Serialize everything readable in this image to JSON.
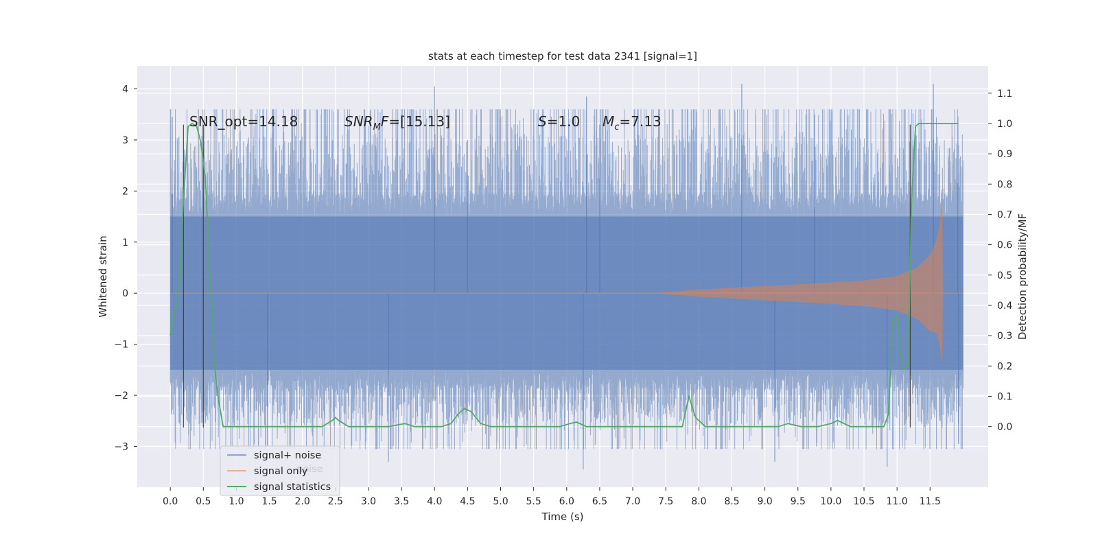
{
  "chart_data": {
    "type": "line",
    "title": "stats at each timestep for test data 2341 [signal=1]",
    "xlabel": "Time (s)",
    "ylabel": "Whitened strain",
    "y2label": "Detection probability/MF",
    "xlim": [
      -0.5,
      12.38
    ],
    "ylim": [
      -3.8,
      4.45
    ],
    "y2lim": [
      -0.2,
      1.19
    ],
    "grid": true,
    "x_ticks": [
      0.0,
      0.5,
      1.0,
      1.5,
      2.0,
      2.5,
      3.0,
      3.5,
      4.0,
      4.5,
      5.0,
      5.5,
      6.0,
      6.5,
      7.0,
      7.5,
      8.0,
      8.5,
      9.0,
      9.5,
      10.0,
      10.5,
      11.0,
      11.5
    ],
    "x_tick_labels": [
      "0.0",
      "0.5",
      "1.0",
      "1.5",
      "2.0",
      "2.5",
      "3.0",
      "3.5",
      "4.0",
      "4.5",
      "5.0",
      "5.5",
      "6.0",
      "6.5",
      "7.0",
      "7.5",
      "8.0",
      "8.5",
      "9.0",
      "9.5",
      "10.0",
      "10.5",
      "11.0",
      "11.5"
    ],
    "y_ticks": [
      -3,
      -2,
      -1,
      0,
      1,
      2,
      3,
      4
    ],
    "y_tick_labels": [
      "−3",
      "−2",
      "−1",
      "0",
      "1",
      "2",
      "3",
      "4"
    ],
    "y2_ticks": [
      0.0,
      0.1,
      0.2,
      0.3,
      0.4,
      0.5,
      0.6,
      0.7,
      0.8,
      0.9,
      1.0,
      1.1
    ],
    "y2_tick_labels": [
      "0.0",
      "0.1",
      "0.2",
      "0.3",
      "0.4",
      "0.5",
      "0.6",
      "0.7",
      "0.8",
      "0.9",
      "1.0",
      "1.1"
    ],
    "legend": {
      "position": "lower-left",
      "entries": [
        "signal+ noise",
        "signal only",
        "signal statistics"
      ],
      "ghost_text": "noise"
    },
    "annotations": [
      {
        "text": "SNR_opt=14.18",
        "x": 0.2,
        "y": 3.4
      },
      {
        "text": "SNR_MF=[15.13]",
        "x": 2.6,
        "y": 3.4
      },
      {
        "text": "S=1.0",
        "x": 5.6,
        "y": 3.4
      },
      {
        "text": "M_c=7.13",
        "x": 6.6,
        "y": 3.4
      }
    ],
    "vertical_lines": [
      0.2,
      0.5,
      11.2
    ],
    "vertical_line_range": [
      -2.63,
      3.3
    ],
    "series": [
      {
        "name": "signal+ noise",
        "axis": "left",
        "color": "#4c72b0",
        "kind": "noise",
        "x_range": [
          0.0,
          12.0
        ],
        "core_amplitude": 1.5,
        "typical_peak_range": [
          1.9,
          3.5
        ],
        "max": 4.1,
        "min": -3.45
      },
      {
        "name": "signal only",
        "axis": "left",
        "color": "#dd8452",
        "kind": "chirp",
        "x_range": [
          0.0,
          12.0
        ],
        "envelope": {
          "x": [
            7.3,
            8.0,
            9.0,
            10.0,
            10.5,
            11.0,
            11.3,
            11.5,
            11.6,
            11.65,
            11.68,
            11.7
          ],
          "y": [
            0.0,
            0.07,
            0.14,
            0.21,
            0.25,
            0.34,
            0.5,
            0.75,
            1.05,
            1.4,
            1.8,
            0.0
          ]
        },
        "min": -1.35
      },
      {
        "name": "signal statistics",
        "axis": "right",
        "color": "#55a868",
        "kind": "line",
        "x": [
          0.0,
          0.06,
          0.13,
          0.2,
          0.27,
          0.33,
          0.4,
          0.46,
          0.53,
          0.6,
          0.66,
          0.72,
          0.8,
          1.0,
          1.5,
          2.0,
          2.3,
          2.45,
          2.5,
          2.55,
          2.7,
          3.0,
          3.3,
          3.55,
          3.7,
          3.9,
          4.1,
          4.25,
          4.35,
          4.45,
          4.55,
          4.7,
          4.85,
          5.0,
          5.5,
          5.9,
          6.05,
          6.15,
          6.3,
          6.6,
          7.0,
          7.5,
          7.75,
          7.85,
          7.95,
          8.1,
          8.5,
          9.0,
          9.2,
          9.35,
          9.55,
          9.8,
          10.0,
          10.1,
          10.3,
          10.5,
          10.7,
          10.8,
          10.87,
          10.93,
          11.0,
          11.05,
          11.1,
          11.17,
          11.22,
          11.28,
          11.33,
          11.4,
          11.6,
          11.8,
          11.93
        ],
        "y": [
          0.3,
          0.37,
          0.44,
          0.75,
          0.99,
          1.0,
          0.99,
          0.94,
          0.82,
          0.5,
          0.22,
          0.1,
          0.0,
          0.0,
          0.0,
          0.0,
          0.0,
          0.02,
          0.03,
          0.02,
          0.0,
          0.0,
          0.0,
          0.01,
          0.0,
          0.0,
          0.0,
          0.01,
          0.04,
          0.06,
          0.05,
          0.01,
          0.0,
          0.0,
          0.0,
          0.0,
          0.01,
          0.015,
          0.0,
          0.0,
          0.0,
          0.0,
          0.0,
          0.1,
          0.03,
          0.0,
          0.0,
          0.0,
          0.0,
          0.01,
          0.0,
          0.0,
          0.01,
          0.02,
          0.0,
          0.0,
          0.0,
          0.0,
          0.04,
          0.34,
          0.37,
          0.25,
          0.19,
          0.2,
          0.75,
          0.99,
          1.0,
          1.0,
          1.0,
          1.0,
          1.0
        ]
      }
    ]
  }
}
